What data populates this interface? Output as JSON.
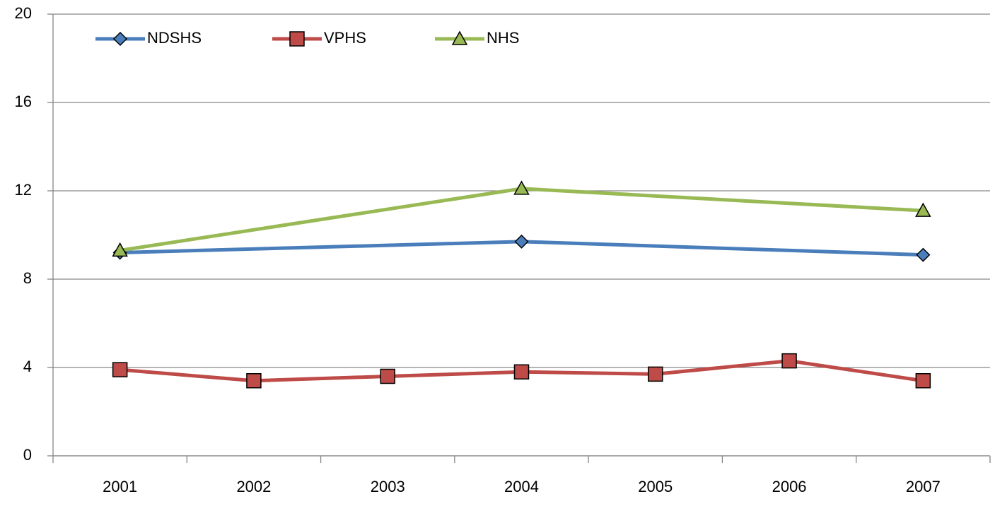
{
  "chart_data": {
    "type": "line",
    "categories": [
      "2001",
      "2002",
      "2003",
      "2004",
      "2005",
      "2006",
      "2007"
    ],
    "series": [
      {
        "name": "NDSHS",
        "color": "#4a7ebb",
        "marker": "diamond",
        "values": [
          9.2,
          null,
          null,
          9.7,
          null,
          null,
          9.1
        ]
      },
      {
        "name": "VPHS",
        "color": "#be4b48",
        "marker": "square",
        "values": [
          3.9,
          3.4,
          3.6,
          3.8,
          3.7,
          4.3,
          3.4
        ]
      },
      {
        "name": "NHS",
        "color": "#98b954",
        "marker": "triangle",
        "values": [
          9.3,
          null,
          null,
          12.1,
          null,
          null,
          11.1
        ]
      }
    ],
    "span_gaps": true,
    "ylim": [
      0,
      20
    ],
    "yticks": [
      0,
      4,
      8,
      12,
      16,
      20
    ],
    "grid": true,
    "legend": "top-left"
  }
}
